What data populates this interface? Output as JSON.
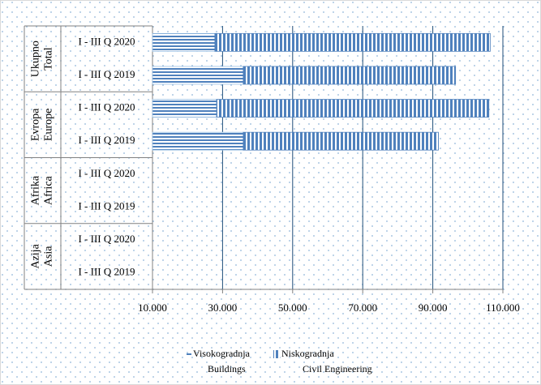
{
  "chart_data": {
    "type": "stacked-bar-horizontal",
    "groups": [
      {
        "name": "Ukupno",
        "name_en": "Total"
      },
      {
        "name": "Evropa",
        "name_en": "Europe"
      },
      {
        "name": "Afrika",
        "name_en": "Africa"
      },
      {
        "name": "Azija",
        "name_en": "Asia"
      }
    ],
    "categories": [
      "I - III Q 2020",
      "I - III Q 2019",
      "I - III Q 2020",
      "I - III Q 2019",
      "I - III Q 2020",
      "I - III Q 2019",
      "I - III Q 2020",
      "I - III Q 2019"
    ],
    "series": [
      {
        "name": "Visokogradnja",
        "name_en": "Buildings",
        "color": "#4f81bd",
        "values": [
          27800,
          35900,
          28300,
          35900,
          null,
          null,
          null,
          null
        ]
      },
      {
        "name": "Niskogradnja",
        "name_en": "Civil Engineering",
        "color": "#4f81bd",
        "values": [
          78600,
          60600,
          77700,
          55700,
          null,
          null,
          null,
          null
        ]
      }
    ],
    "xlim": [
      10000,
      110000
    ],
    "xticks": [
      {
        "value": 10000,
        "label": "10.000"
      },
      {
        "value": 30000,
        "label": "30.000"
      },
      {
        "value": 50000,
        "label": "50.000"
      },
      {
        "value": 70000,
        "label": "70.000"
      },
      {
        "value": 90000,
        "label": "90.000"
      },
      {
        "value": 110000,
        "label": "110.000"
      }
    ],
    "grid": true
  }
}
